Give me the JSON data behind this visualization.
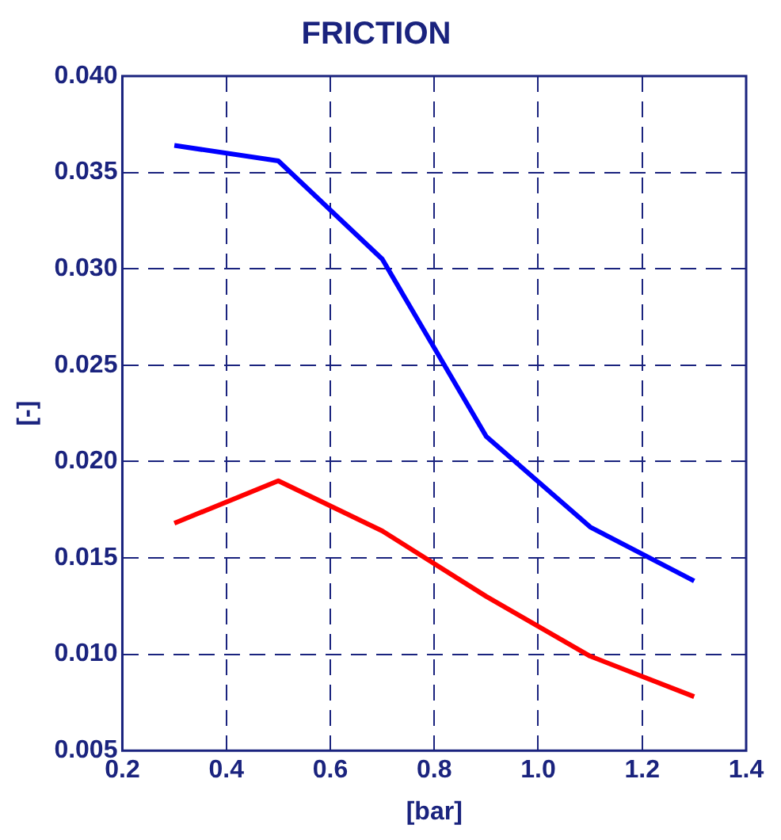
{
  "chart_data": {
    "type": "line",
    "title": "FRICTION",
    "xlabel": "[bar]",
    "ylabel": "[-]",
    "x": [
      0.3,
      0.5,
      0.7,
      0.9,
      1.1,
      1.3
    ],
    "series": [
      {
        "color": "#0000ff",
        "values": [
          0.0364,
          0.0356,
          0.0305,
          0.0213,
          0.0166,
          0.0138
        ]
      },
      {
        "color": "#ff0000",
        "values": [
          0.0168,
          0.019,
          0.0164,
          0.013,
          0.0099,
          0.0078
        ]
      }
    ],
    "xlim": [
      0.2,
      1.4
    ],
    "xticks": [
      {
        "value": 0.2,
        "label": "0.2"
      },
      {
        "value": 0.4,
        "label": "0.4"
      },
      {
        "value": 0.6,
        "label": "0.6"
      },
      {
        "value": 0.8,
        "label": "0.8"
      },
      {
        "value": 1.0,
        "label": "1.0"
      },
      {
        "value": 1.2,
        "label": "1.2"
      },
      {
        "value": 1.4,
        "label": "1.4"
      }
    ],
    "ylim": [
      0.005,
      0.04
    ],
    "yticks": [
      {
        "value": 0.005,
        "label": "0.005"
      },
      {
        "value": 0.01,
        "label": "0.010"
      },
      {
        "value": 0.015,
        "label": "0.015"
      },
      {
        "value": 0.02,
        "label": "0.020"
      },
      {
        "value": 0.025,
        "label": "0.025"
      },
      {
        "value": 0.03,
        "label": "0.030"
      },
      {
        "value": 0.035,
        "label": "0.035"
      },
      {
        "value": 0.04,
        "label": "0.040"
      }
    ],
    "grid": true,
    "legend": false,
    "marker": "none",
    "line_style": "solid"
  }
}
